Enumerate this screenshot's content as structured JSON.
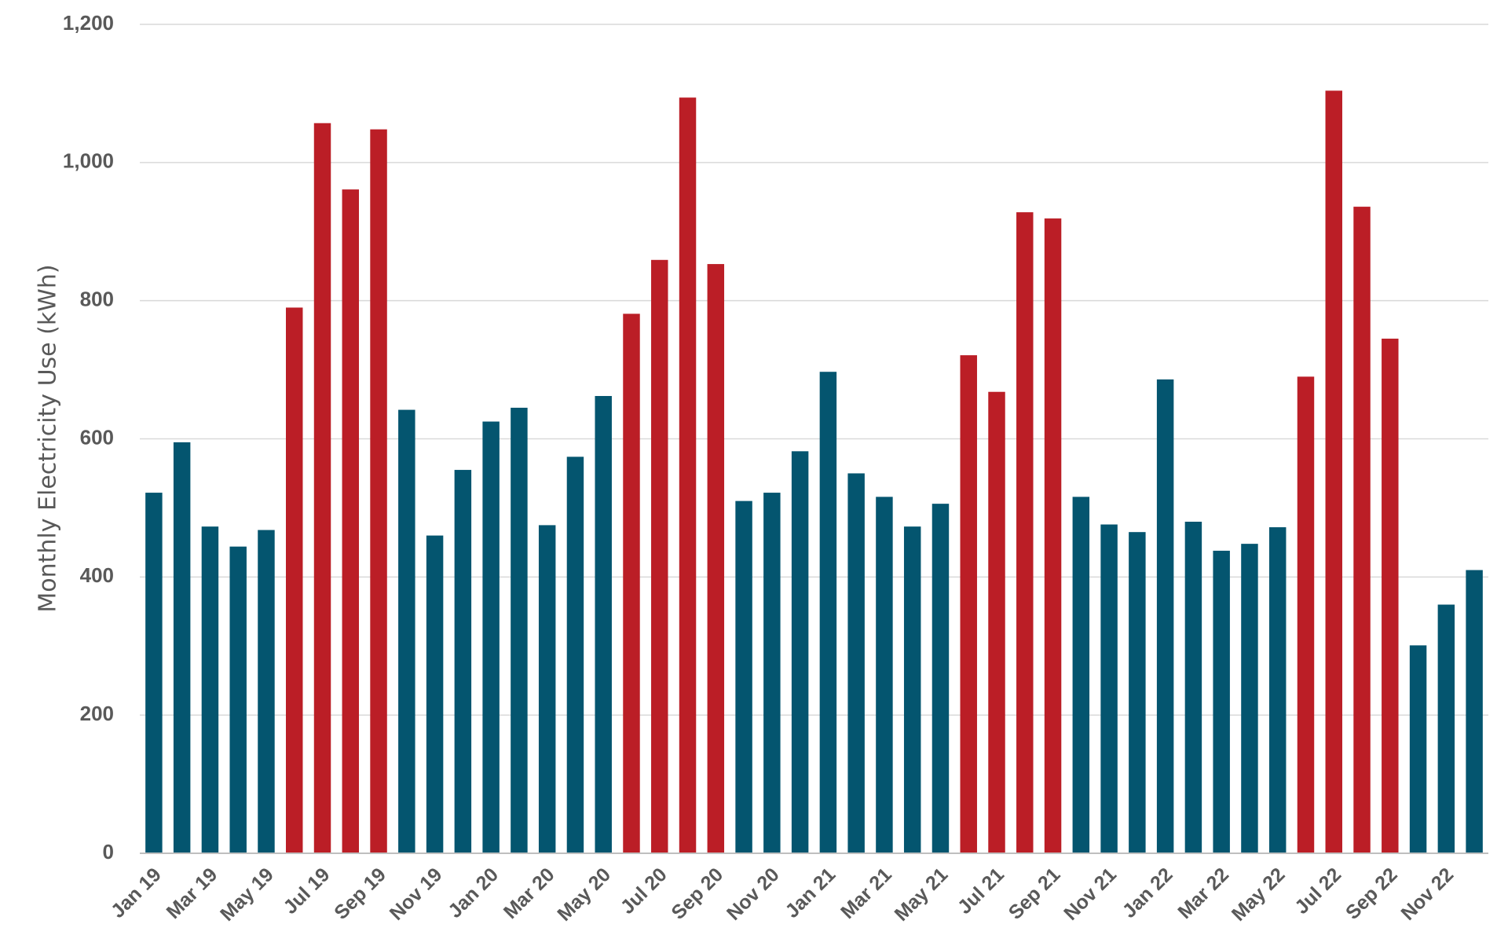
{
  "chart_data": {
    "type": "bar",
    "ylabel": "Monthly Electricity Use (kWh)",
    "xlabel": "",
    "ylim": [
      0,
      1200
    ],
    "yticks": [
      0,
      200,
      400,
      600,
      800,
      1000,
      1200
    ],
    "ytick_labels": [
      "0",
      "200",
      "400",
      "600",
      "800",
      "1,000",
      "1,200"
    ],
    "grid": true,
    "legend": "none",
    "colors": {
      "normal": "#04556f",
      "summer": "#bb1e26"
    },
    "categories": [
      "Jan 19",
      "Feb 19",
      "Mar 19",
      "Apr 19",
      "May 19",
      "Jun 19",
      "Jul 19",
      "Aug 19",
      "Sep 19",
      "Oct 19",
      "Nov 19",
      "Dec 19",
      "Jan 20",
      "Feb 20",
      "Mar 20",
      "Apr 20",
      "May 20",
      "Jun 20",
      "Jul 20",
      "Aug 20",
      "Sep 20",
      "Oct 20",
      "Nov 20",
      "Dec 20",
      "Jan 21",
      "Feb 21",
      "Mar 21",
      "Apr 21",
      "May 21",
      "Jun 21",
      "Jul 21",
      "Aug 21",
      "Sep 21",
      "Oct 21",
      "Nov 21",
      "Dec 21",
      "Jan 22",
      "Feb 22",
      "Mar 22",
      "Apr 22",
      "May 22",
      "Jun 22",
      "Jul 22",
      "Aug 22",
      "Sep 22",
      "Oct 22",
      "Nov 22",
      "Dec 22"
    ],
    "tick_labels": [
      "Jan 19",
      "Mar 19",
      "May 19",
      "Jul 19",
      "Sep 19",
      "Nov 19",
      "Jan 20",
      "Mar 20",
      "May 20",
      "Jul 20",
      "Sep 20",
      "Nov 20",
      "Jan 21",
      "Mar 21",
      "May 21",
      "Jul 21",
      "Sep 21",
      "Nov 21",
      "Jan 22",
      "Mar 22",
      "May 22",
      "Jul 22",
      "Sep 22",
      "Nov 22"
    ],
    "values": [
      522,
      595,
      473,
      444,
      468,
      790,
      1057,
      961,
      1048,
      642,
      460,
      555,
      625,
      645,
      475,
      574,
      662,
      781,
      859,
      1094,
      853,
      510,
      522,
      582,
      697,
      550,
      516,
      473,
      506,
      721,
      668,
      928,
      919,
      516,
      476,
      465,
      686,
      480,
      438,
      448,
      472,
      690,
      1104,
      936,
      745,
      301,
      360,
      410
    ],
    "highlight": [
      false,
      false,
      false,
      false,
      false,
      true,
      true,
      true,
      true,
      false,
      false,
      false,
      false,
      false,
      false,
      false,
      false,
      true,
      true,
      true,
      true,
      false,
      false,
      false,
      false,
      false,
      false,
      false,
      false,
      true,
      true,
      true,
      true,
      false,
      false,
      false,
      false,
      false,
      false,
      false,
      false,
      true,
      true,
      true,
      true,
      false,
      false,
      false
    ]
  }
}
